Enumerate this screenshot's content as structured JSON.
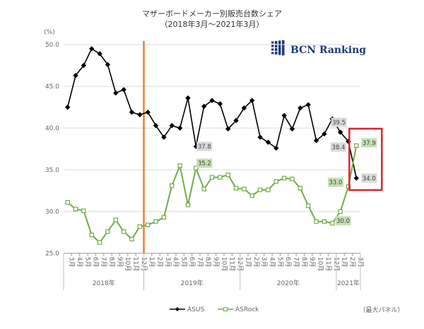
{
  "chart_data": {
    "type": "line",
    "title": "マザーボードメーカー別販売台数シェア",
    "subtitle": "（2018年3月～2021年3月）",
    "ylabel": "(%)",
    "ylim": [
      25,
      50
    ],
    "yticks": [
      "25.0",
      "30.0",
      "35.0",
      "40.0",
      "45.0",
      "50.0"
    ],
    "months": [
      "3月",
      "4月",
      "5月",
      "6月",
      "7月",
      "8月",
      "9月",
      "10月",
      "11月",
      "12月",
      "1月",
      "2月",
      "3月",
      "4月",
      "5月",
      "6月",
      "7月",
      "8月",
      "9月",
      "10月",
      "11月",
      "12月",
      "1月",
      "2月",
      "3月",
      "4月",
      "5月",
      "6月",
      "7月",
      "8月",
      "9月",
      "10月",
      "11月",
      "12月",
      "1月",
      "2月",
      "3月"
    ],
    "years": [
      "2018年",
      "2019年",
      "2020年",
      "2021年"
    ],
    "series": [
      {
        "name": "ASUS",
        "color": "#000000",
        "marker": "diamond",
        "values": [
          42.5,
          46.3,
          47.5,
          49.5,
          48.9,
          47.6,
          44.2,
          44.6,
          41.9,
          41.6,
          41.9,
          40.3,
          38.9,
          40.3,
          40.0,
          43.6,
          37.8,
          42.6,
          43.3,
          42.9,
          39.9,
          40.9,
          42.4,
          43.3,
          38.9,
          38.3,
          37.6,
          41.5,
          39.9,
          42.4,
          42.8,
          38.5,
          39.3,
          41.1,
          39.5,
          38.4,
          34.0
        ]
      },
      {
        "name": "ASRock",
        "color": "#70AD47",
        "marker": "square",
        "values": [
          31.1,
          30.3,
          30.1,
          27.2,
          26.3,
          27.6,
          29.0,
          27.6,
          26.7,
          28.2,
          28.4,
          28.8,
          29.3,
          33.1,
          35.5,
          30.8,
          35.2,
          32.7,
          34.1,
          34.1,
          34.4,
          32.8,
          32.7,
          31.9,
          32.6,
          32.6,
          33.6,
          34.0,
          33.9,
          32.8,
          30.7,
          28.8,
          28.8,
          28.6,
          30.0,
          33.0,
          37.9
        ]
      }
    ],
    "data_labels": [
      {
        "series": 0,
        "index": 16,
        "text": "37.8"
      },
      {
        "series": 1,
        "index": 16,
        "text": "35.2"
      },
      {
        "series": 0,
        "index": 34,
        "text": "39.5"
      },
      {
        "series": 0,
        "index": 35,
        "text": "38.4"
      },
      {
        "series": 0,
        "index": 36,
        "text": "34.0"
      },
      {
        "series": 1,
        "index": 34,
        "text": "30.0"
      },
      {
        "series": 1,
        "index": 35,
        "text": "33.0"
      },
      {
        "series": 1,
        "index": 36,
        "text": "37.9"
      }
    ],
    "marker_line_color": "#ED7D31",
    "highlight_color": "#E0212B",
    "legend_position": "bottom"
  },
  "logo": {
    "text": "BCN Ranking",
    "color": "#1f3a7a"
  },
  "source_note": "（最大パネル）"
}
